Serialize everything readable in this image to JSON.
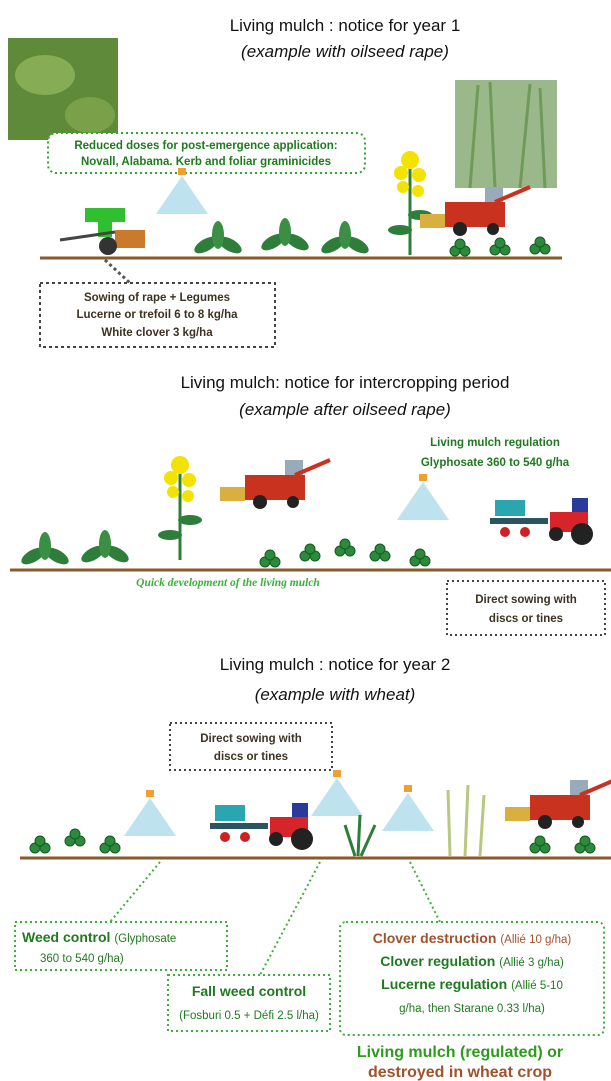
{
  "sections": [
    {
      "title": "Living mulch : notice for year 1",
      "subtitle": "(example with oilseed rape)",
      "notes": [
        {
          "lines": [
            "Reduced doses for post-emergence application:",
            "Novall, Alabama. Kerb and foliar graminicides"
          ]
        },
        {
          "lines": [
            "Sowing of rape + Legumes",
            "Lucerne or trefoil 6 to 8 kg/ha",
            "White clover 3 kg/ha"
          ]
        }
      ]
    },
    {
      "title": "Living mulch: notice for intercropping period",
      "subtitle": "(example after oilseed rape)",
      "notes": [
        {
          "lines": [
            "Living mulch regulation",
            "Glyphosate 360 to 540 g/ha"
          ]
        },
        {
          "lines": [
            "Quick development of the living mulch"
          ]
        },
        {
          "lines": [
            "Direct sowing with",
            "discs or tines"
          ]
        }
      ]
    },
    {
      "title": "Living mulch : notice for year 2",
      "subtitle": "(example with wheat)",
      "notes": [
        {
          "lines": [
            "Direct sowing with",
            "discs or tines"
          ]
        },
        {
          "label": "Weed control",
          "detail": [
            "(Glyphosate",
            "360 to 540 g/ha)"
          ]
        },
        {
          "label": "Fall weed control",
          "detail": [
            "(Fosburi 0.5 + Défi 2.5 l/ha)"
          ]
        },
        {
          "items": [
            {
              "label": "Clover destruction",
              "detail": "(Allié 10 g/ha)"
            },
            {
              "label": "Clover regulation",
              "detail": "(Allié 3 g/ha)"
            },
            {
              "label": "Lucerne regulation",
              "detail": "(Allié 5-10"
            }
          ],
          "continuation": "g/ha, then Starane 0.33 l/ha)"
        }
      ],
      "footer": [
        "Living mulch (regulated) or",
        "destroyed in wheat crop"
      ]
    }
  ]
}
